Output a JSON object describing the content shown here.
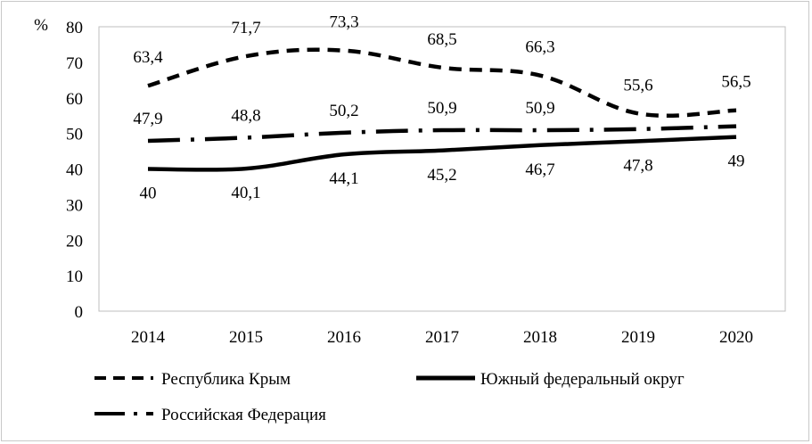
{
  "chart_data": {
    "type": "line",
    "ylabel": "%",
    "ylim": [
      0,
      80
    ],
    "yticks": [
      "0",
      "10",
      "20",
      "30",
      "40",
      "50",
      "60",
      "70",
      "80"
    ],
    "categories": [
      "2014",
      "2015",
      "2016",
      "2017",
      "2018",
      "2019",
      "2020"
    ],
    "grid": false,
    "legend_position": "bottom",
    "series": [
      {
        "name": "Республика Крым",
        "values": [
          63.4,
          71.7,
          73.3,
          68.5,
          66.3,
          55.6,
          56.5
        ],
        "labels": [
          "63,4",
          "71,7",
          "73,3",
          "68,5",
          "66,3",
          "55,6",
          "56,5"
        ],
        "style": "dashed",
        "color": "#000000"
      },
      {
        "name": "Южный федеральный округ",
        "values": [
          40,
          40.1,
          44.1,
          45.2,
          46.7,
          47.8,
          49
        ],
        "labels": [
          "40",
          "40,1",
          "44,1",
          "45,2",
          "46,7",
          "47,8",
          "49"
        ],
        "style": "solid",
        "color": "#000000"
      },
      {
        "name": "Российская Федерация",
        "values": [
          47.9,
          48.8,
          50.2,
          50.9,
          50.9,
          51.2,
          52
        ],
        "labels": [
          "47,9",
          "48,8",
          "50,2",
          "50,9",
          "50,9",
          "",
          ""
        ],
        "style": "dash-dot",
        "color": "#000000"
      }
    ]
  }
}
